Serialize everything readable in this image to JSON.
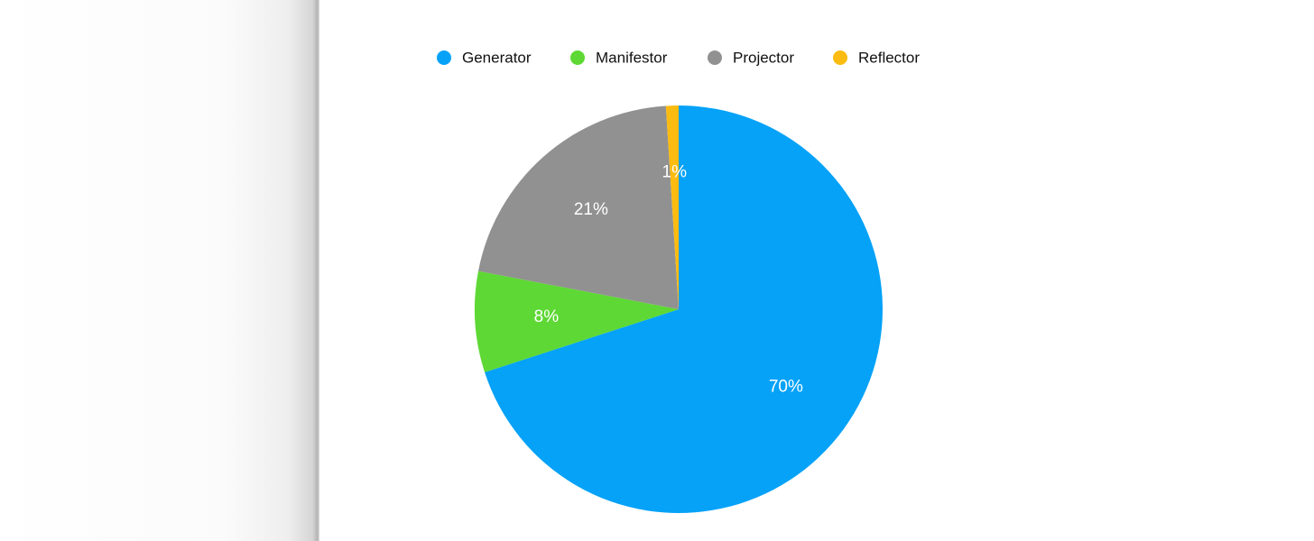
{
  "chart_data": {
    "type": "pie",
    "categories": [
      "Generator",
      "Manifestor",
      "Projector",
      "Reflector"
    ],
    "values": [
      70,
      8,
      21,
      1
    ],
    "value_labels": [
      "70%",
      "8%",
      "21%",
      "1%"
    ],
    "colors": [
      "#05a2f8",
      "#5ed834",
      "#919191",
      "#fbbb10"
    ],
    "legend": "top"
  }
}
